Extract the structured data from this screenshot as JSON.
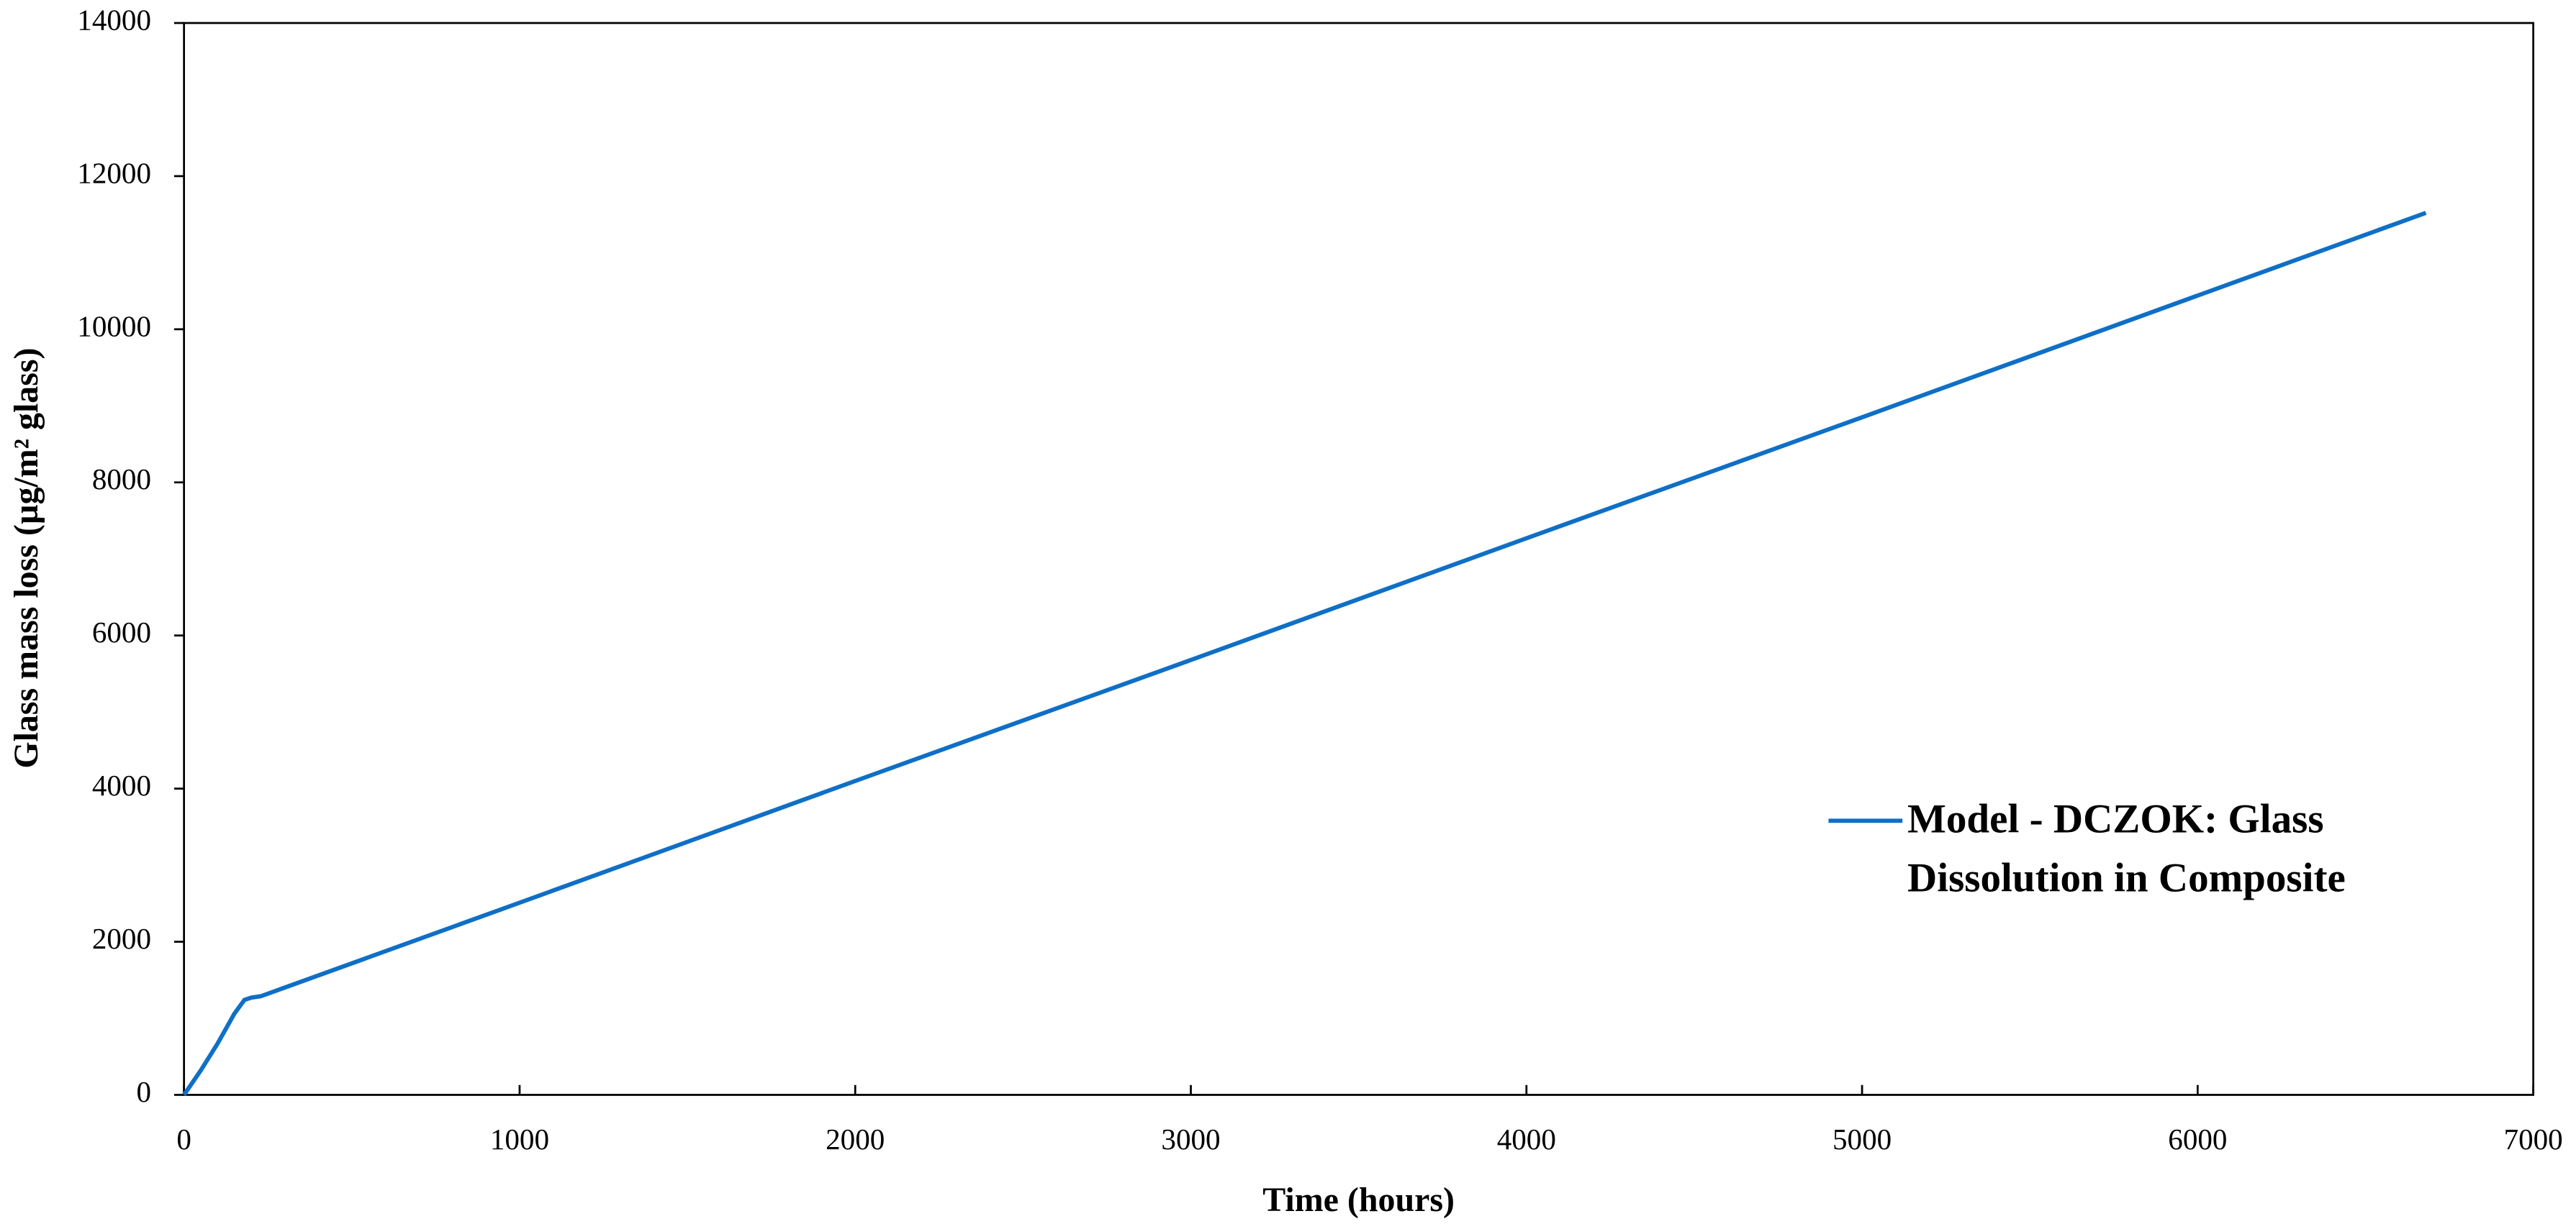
{
  "chart_data": {
    "type": "line",
    "x_label": "Time (hours)",
    "y_label": "Glass mass loss (µg/m² glass)",
    "x": [
      0,
      50,
      100,
      150,
      180,
      200,
      230,
      1000,
      2000,
      3000,
      4000,
      5000,
      6000,
      6680
    ],
    "series": [
      {
        "name": "Model - DCZOK: Glass Dissolution in Composite",
        "color": "#0f6fc6",
        "values": [
          0,
          320,
          670,
          1060,
          1240,
          1270,
          1290,
          2510,
          4100,
          5680,
          7270,
          8850,
          10440,
          11520
        ]
      }
    ],
    "xlim": [
      0,
      7000
    ],
    "xticks": [
      0,
      1000,
      2000,
      3000,
      4000,
      5000,
      6000,
      7000
    ],
    "ylim": [
      0,
      14000
    ],
    "yticks": [
      0,
      2000,
      4000,
      6000,
      8000,
      10000,
      12000,
      14000
    ],
    "grid": false,
    "legend": "right"
  }
}
